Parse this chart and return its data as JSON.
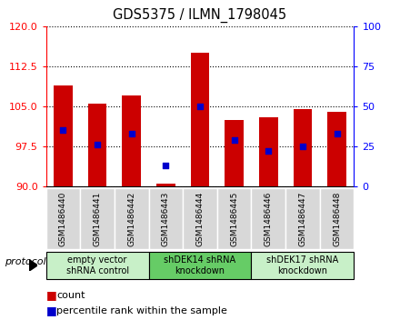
{
  "title": "GDS5375 / ILMN_1798045",
  "samples": [
    "GSM1486440",
    "GSM1486441",
    "GSM1486442",
    "GSM1486443",
    "GSM1486444",
    "GSM1486445",
    "GSM1486446",
    "GSM1486447",
    "GSM1486448"
  ],
  "counts": [
    109.0,
    105.5,
    107.0,
    90.5,
    115.0,
    102.5,
    103.0,
    104.5,
    104.0
  ],
  "percentiles": [
    35,
    26,
    33,
    13,
    50,
    29,
    22,
    25,
    33
  ],
  "ylim_left": [
    90,
    120
  ],
  "ylim_right": [
    0,
    100
  ],
  "yticks_left": [
    90,
    97.5,
    105,
    112.5,
    120
  ],
  "yticks_right": [
    0,
    25,
    50,
    75,
    100
  ],
  "bar_color": "#cc0000",
  "dot_color": "#0000cc",
  "bar_bottom": 90,
  "bar_width": 0.55,
  "groups": [
    {
      "label": "empty vector\nshRNA control",
      "start": 0,
      "end": 3,
      "color": "#c8f0c8"
    },
    {
      "label": "shDEK14 shRNA\nknockdown",
      "start": 3,
      "end": 6,
      "color": "#66cc66"
    },
    {
      "label": "shDEK17 shRNA\nknockdown",
      "start": 6,
      "end": 9,
      "color": "#c8f0c8"
    }
  ],
  "legend_count_label": "count",
  "legend_pct_label": "percentile rank within the sample",
  "protocol_label": "protocol"
}
